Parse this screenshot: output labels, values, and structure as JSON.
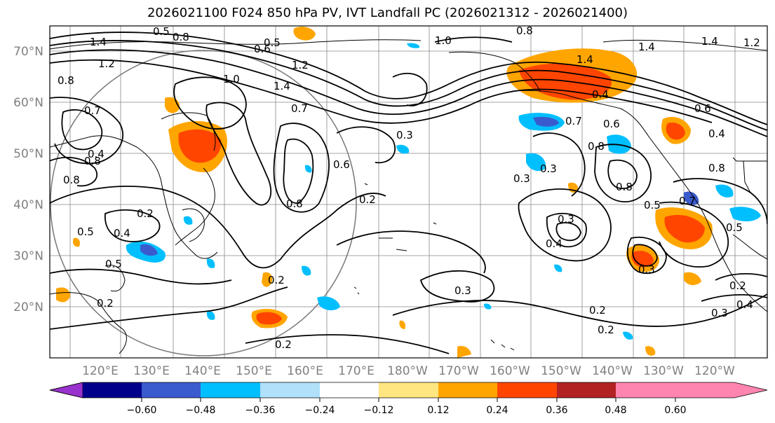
{
  "title": "2026021100 F024 850 hPa PV, IVT Landfall PC (2026021312 - 2026021400)",
  "lat_labels": [
    "70°N",
    "60°N",
    "50°N",
    "40°N",
    "30°N",
    "20°N"
  ],
  "lon_labels": [
    "120°E",
    "130°E",
    "140°E",
    "150°E",
    "160°E",
    "170°E",
    "180°W",
    "170°W",
    "160°W",
    "150°W",
    "140°W",
    "130°W",
    "120°W"
  ],
  "contour_labels": [
    "1.4",
    "0.5",
    "0.6",
    "0.8",
    "0.8",
    "0.5",
    "1.0",
    "1.4",
    "1.4",
    "1.2",
    "1.2",
    "1.4",
    "1.2",
    "0.8",
    "1.0",
    "1.4",
    "0.7",
    "0.7",
    "0.6",
    "0.4",
    "0.3",
    "0.8",
    "0.8",
    "0.6",
    "0.4",
    "0.5",
    "0.5",
    "0.4",
    "0.2",
    "0.2",
    "0.3",
    "0.3",
    "0.2",
    "0.2",
    "0.2",
    "0.2",
    "0.3",
    "0.4",
    "0.2",
    "0.3",
    "0.4",
    "0.3",
    "0.5",
    "0.8",
    "0.7",
    "0.6",
    "0.4",
    "0.8",
    "0.3",
    "0.8",
    "0.8",
    "0.5",
    "0.2",
    "0.7"
  ],
  "colorbar": {
    "colors": [
      "#9932cc",
      "#00008b",
      "#3a5bcd",
      "#00bfff",
      "#b0e0fa",
      "#ffffff",
      "#ffe680",
      "#ffa500",
      "#ff4500",
      "#b22222",
      "#ff85b0"
    ],
    "tick_labels": [
      "−0.60",
      "−0.48",
      "−0.36",
      "−0.24",
      "−0.12",
      "0.12",
      "0.24",
      "0.36",
      "0.48",
      "0.60"
    ]
  }
}
